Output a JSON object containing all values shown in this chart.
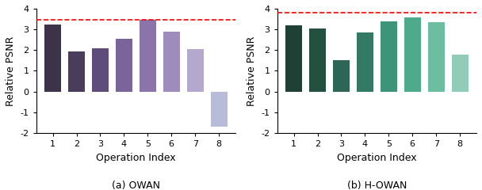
{
  "owan": {
    "values": [
      3.25,
      1.95,
      2.1,
      2.55,
      3.45,
      2.9,
      2.05,
      -1.7
    ],
    "colors": [
      "#3d3349",
      "#4a3d5c",
      "#5e4d7a",
      "#7a6499",
      "#8b74aa",
      "#9e8cbd",
      "#b4a8cf",
      "#b8bcd8"
    ],
    "dashed_y": 3.45,
    "title": "(a) OWAN",
    "ylabel": "Relative PSNR",
    "xlabel": "Operation Index"
  },
  "howan": {
    "values": [
      3.2,
      3.05,
      1.5,
      2.85,
      3.4,
      3.58,
      3.35,
      1.8
    ],
    "colors": [
      "#1e4035",
      "#245040",
      "#2d6655",
      "#337a65",
      "#3d9478",
      "#4daa8a",
      "#6dbda0",
      "#90ccb8"
    ],
    "dashed_y": 3.8,
    "title": "(b) H-OWAN",
    "ylabel": "Relative PSNR",
    "xlabel": "Operation Index"
  },
  "fig_width": 6.08,
  "fig_height": 2.4,
  "dpi": 100,
  "ylim": [
    -2,
    4
  ],
  "yticks": [
    -2,
    -1,
    0,
    1,
    2,
    3,
    4
  ],
  "xticks": [
    1,
    2,
    3,
    4,
    5,
    6,
    7,
    8
  ]
}
